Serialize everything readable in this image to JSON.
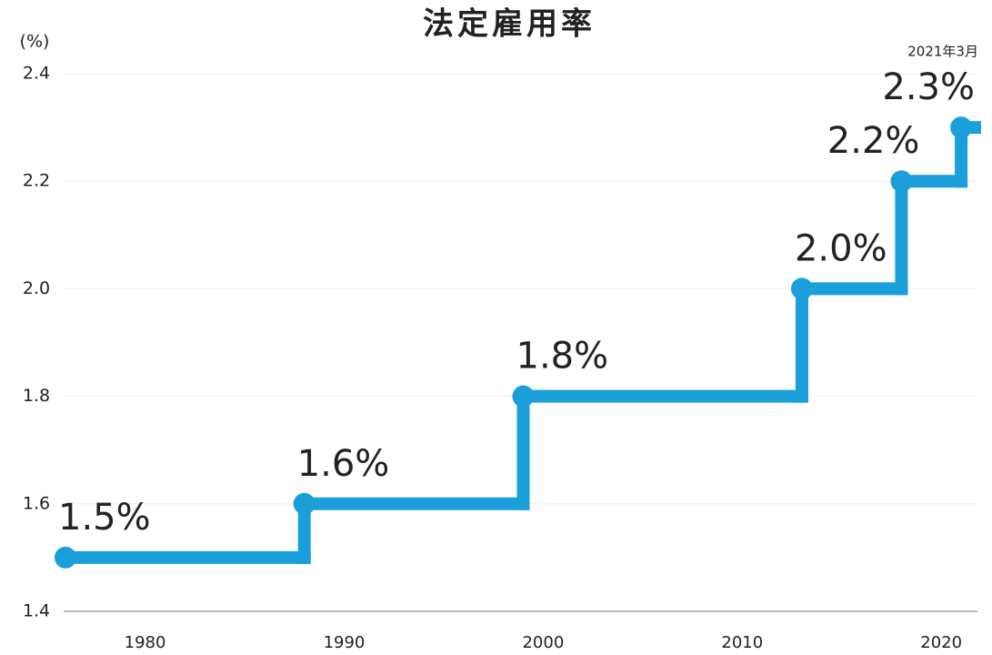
{
  "chart_data": {
    "type": "step",
    "title": "法定雇用率",
    "y_label": "(%)",
    "annotation": "2021年3月",
    "x": [
      1976,
      1988,
      1999,
      2013,
      2018,
      2021
    ],
    "values": [
      1.5,
      1.6,
      1.8,
      2.0,
      2.2,
      2.3
    ],
    "value_labels": [
      "1.5%",
      "1.6%",
      "1.8%",
      "2.0%",
      "2.2%",
      "2.3%"
    ],
    "color": "#1a9fdb",
    "xlim": [
      1976,
      2022
    ],
    "xticks": [
      1980,
      1990,
      2000,
      2010,
      2020
    ],
    "ylim": [
      1.4,
      2.4
    ],
    "yticks": [
      1.4,
      1.6,
      1.8,
      {
        "value": 2,
        "label": "2.0"
      },
      2.2,
      2.4
    ],
    "grid": true
  }
}
